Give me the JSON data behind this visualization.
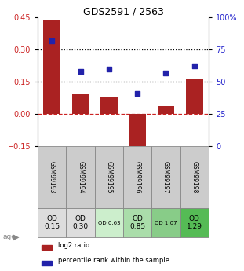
{
  "title": "GDS2591 / 2563",
  "samples": [
    "GSM99193",
    "GSM99194",
    "GSM99195",
    "GSM99196",
    "GSM99197",
    "GSM99198"
  ],
  "log2_ratio": [
    0.44,
    0.09,
    0.08,
    -0.18,
    0.035,
    0.165
  ],
  "percentile_rank": [
    82,
    58,
    60,
    41,
    57,
    62
  ],
  "bar_color": "#aa2222",
  "dot_color": "#2222aa",
  "left_ylim": [
    -0.15,
    0.45
  ],
  "left_yticks": [
    -0.15,
    0.0,
    0.15,
    0.3,
    0.45
  ],
  "right_ylim": [
    0,
    100
  ],
  "right_yticks": [
    0,
    25,
    50,
    75,
    100
  ],
  "right_yticklabels": [
    "0",
    "25",
    "50",
    "75",
    "100%"
  ],
  "hlines": [
    0.15,
    0.3
  ],
  "hline_zero_color": "#cc2222",
  "hline_dotted_color": "black",
  "age_labels": [
    "OD\n0.15",
    "OD\n0.30",
    "OD 0.63",
    "OD\n0.85",
    "OD 1.07",
    "OD\n1.29"
  ],
  "age_colors": [
    "#dddddd",
    "#dddddd",
    "#cceecc",
    "#aaddaa",
    "#88cc88",
    "#55bb55"
  ],
  "age_fontsize_big": [
    true,
    true,
    false,
    true,
    false,
    true
  ],
  "sample_bg": "#cccccc",
  "legend_red": "log2 ratio",
  "legend_blue": "percentile rank within the sample",
  "background_color": "#ffffff"
}
